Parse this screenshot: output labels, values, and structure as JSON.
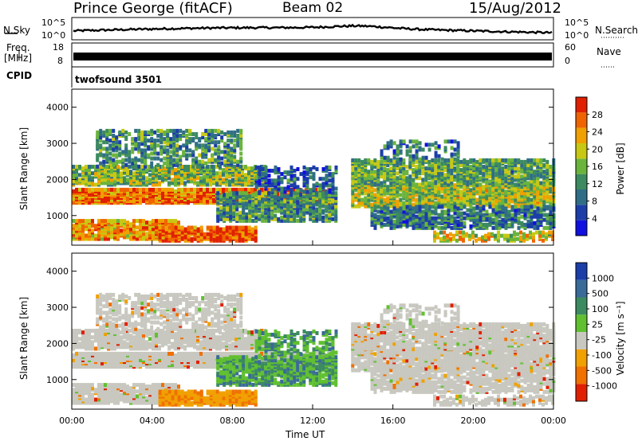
{
  "header": {
    "station": "Prince George (fitACF)",
    "beam": "Beam 02",
    "date": "15/Aug/2012"
  },
  "noise_panel": {
    "left_label": "N.Sky",
    "left_ticks": [
      "10^5",
      "10^0"
    ],
    "right_label": "N.Search",
    "right_ticks": [
      "10^5",
      "10^0"
    ]
  },
  "freq_panel": {
    "left_label_1": "Freq.",
    "left_label_2": "[MHz]",
    "left_ticks": [
      "18",
      "8"
    ],
    "right_label": "Nave",
    "right_ticks": [
      "60",
      "0"
    ]
  },
  "cpid": {
    "label": "CPID",
    "program": "twofsound 3501"
  },
  "colors": {
    "power": [
      "#1010e0",
      "#1c3ea8",
      "#2f6e86",
      "#3c8a60",
      "#6ab43c",
      "#c8c814",
      "#f0a000",
      "#f06400",
      "#e02000"
    ],
    "velocity": [
      "#1c3ea8",
      "#3a6a98",
      "#3c8a60",
      "#60c030",
      "#c8c8c0",
      "#f0a000",
      "#f07000",
      "#e02000"
    ]
  },
  "chart_data": [
    {
      "type": "heatmap",
      "name": "power",
      "xlabel": "",
      "ylabel": "Slant Range [km]",
      "xlim": [
        "00:00",
        "00:00"
      ],
      "ylim": [
        180,
        4500
      ],
      "yticks": [
        1000,
        2000,
        3000,
        4000
      ],
      "colorbar": {
        "label": "Power [dB]",
        "ticks": [
          4,
          8,
          12,
          16,
          20,
          24,
          28
        ],
        "range": [
          0,
          32
        ]
      }
    },
    {
      "type": "heatmap",
      "name": "velocity",
      "xlabel": "Time UT",
      "ylabel": "Slant Range [km]",
      "xticks": [
        "00:00",
        "04:00",
        "08:00",
        "12:00",
        "16:00",
        "20:00",
        "00:00"
      ],
      "ylim": [
        180,
        4500
      ],
      "yticks": [
        1000,
        2000,
        3000,
        4000
      ],
      "colorbar": {
        "label": "Velocity [m s⁻¹]",
        "ticks": [
          "1000",
          "500",
          "100",
          "25",
          "-25",
          "-100",
          "-500",
          "-1000"
        ]
      }
    }
  ]
}
